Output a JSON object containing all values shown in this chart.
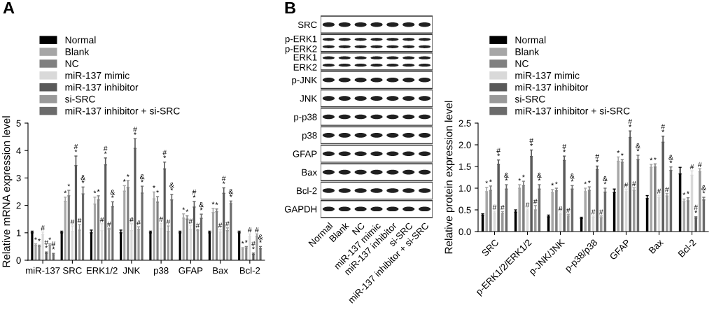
{
  "chart_data": [
    {
      "type": "bar",
      "title": "A",
      "ylabel": "Relative mRNA expression level",
      "legend": "top left",
      "categories": [
        "miR-137",
        "SRC",
        "ERK1/2",
        "JNK",
        "p38",
        "GFAP",
        "Bax",
        "Bcl-2"
      ],
      "ylim": [
        0,
        5
      ],
      "yticks": [
        0,
        1,
        2,
        3,
        4,
        5
      ],
      "series": [
        {
          "name": "Normal",
          "color": "#000000",
          "values": [
            1.0,
            1.0,
            1.0,
            1.0,
            1.0,
            1.0,
            1.0,
            1.0
          ],
          "errors": [
            0.06,
            0.06,
            0.1,
            0.1,
            0.06,
            0.06,
            0.06,
            0.06
          ],
          "value_labels": [
            null,
            null,
            null,
            null,
            null,
            null,
            null,
            null
          ]
        },
        {
          "name": "Blank",
          "color": "#a6a6a6",
          "values": [
            0.55,
            2.15,
            2.05,
            2.52,
            2.24,
            1.54,
            1.74,
            0.41
          ],
          "errors": [
            0.05,
            0.15,
            0.25,
            0.2,
            0.25,
            0.15,
            0.15,
            0.05
          ],
          "value_labels": [
            "*",
            "*",
            "*",
            "*",
            "*",
            "*",
            "*",
            "*"
          ]
        },
        {
          "name": "NC",
          "color": "#808080",
          "values": [
            0.5,
            2.35,
            2.2,
            2.65,
            2.12,
            1.5,
            1.77,
            0.45
          ],
          "errors": [
            0.05,
            0.2,
            0.15,
            0.25,
            0.2,
            0.12,
            0.1,
            0.05
          ],
          "value_labels": [
            "*",
            "*",
            "*",
            "*",
            "*",
            "*",
            "*",
            "*"
          ]
        },
        {
          "name": "miR-137 mimic",
          "color": "#d9d9d9",
          "values": [
            0.93,
            1.05,
            1.08,
            1.08,
            1.15,
            1.13,
            1.03,
            0.86
          ],
          "errors": [
            0.1,
            0.2,
            0.25,
            0.25,
            0.2,
            0.15,
            0.1,
            0.1
          ],
          "value_labels": [
            "#",
            "#",
            "#",
            "#",
            "#",
            "#",
            "#",
            "#"
          ]
        },
        {
          "name": "miR-137 inhibitor",
          "color": "#595959",
          "values": [
            0.25,
            3.45,
            3.48,
            4.08,
            3.33,
            1.94,
            2.44,
            0.21
          ],
          "errors": [
            0.05,
            0.35,
            0.25,
            0.35,
            0.25,
            0.2,
            0.2,
            0.05
          ],
          "value_labels": [
            "#\n*",
            "#\n*",
            "#\n*",
            "#\n*",
            "#\n*",
            "#\n*",
            "#\n*",
            "#\n*"
          ]
        },
        {
          "name": "si-SRC",
          "color": "#999999",
          "values": [
            0.55,
            1.1,
            1.12,
            1.12,
            1.05,
            1.08,
            1.08,
            0.88
          ],
          "errors": [
            0.05,
            0.2,
            0.05,
            0.1,
            0.2,
            0.05,
            0.1,
            0.08
          ],
          "value_labels": [
            "*",
            "#",
            "#",
            "#",
            "#",
            "#",
            "#",
            "#"
          ]
        },
        {
          "name": "miR-137 inhibitor + si-SRC",
          "color": "#6b6b6b",
          "values": [
            0.2,
            2.42,
            1.95,
            2.45,
            2.2,
            1.53,
            2.06,
            0.42
          ],
          "errors": [
            0.05,
            0.25,
            0.18,
            0.25,
            0.2,
            0.15,
            0.1,
            0.08
          ],
          "value_labels": [
            "#\n*",
            "&\n*",
            "&\n*",
            "&\n*",
            "&\n*",
            "&\n*",
            "&\n*",
            "&\n*"
          ]
        }
      ]
    },
    {
      "type": "other",
      "title": "B",
      "categories": [
        "Normal",
        "Blank",
        "NC",
        "miR-137 mimic",
        "miR-137 inhibitor",
        "si-SRC",
        "miR-137 inhibitor + si-SRC"
      ],
      "y_categories": [
        "SRC",
        "p-ERK1\np-ERK2",
        "ERK1\nERK2",
        "p-JNK",
        "JNK",
        "p-p38",
        "p38",
        "GFAP",
        "Bax",
        "Bcl-2",
        "GAPDH"
      ]
    },
    {
      "type": "bar",
      "ylabel": "Relative protein expression level",
      "legend": "top left",
      "categories": [
        "SRC",
        "p-ERK1/2/ERK1/2",
        "p-JNK/JNK",
        "p-p38/p38",
        "GFAP",
        "Bax",
        "Bcl-2"
      ],
      "ylim": [
        0,
        2.5
      ],
      "yticks": [
        {
          "value": 0,
          "label": "0.0"
        },
        0.5,
        {
          "value": 1,
          "label": "1.0"
        },
        1.5,
        {
          "value": 2,
          "label": "2.0"
        },
        2.5
      ],
      "series": [
        {
          "name": "Normal",
          "color": "#000000",
          "values": [
            0.38,
            0.45,
            0.34,
            0.3,
            0.9,
            0.76,
            1.33
          ],
          "errors": [
            0.03,
            0.05,
            0.04,
            0.03,
            0.08,
            0.07,
            0.15
          ],
          "value_labels": [
            null,
            null,
            null,
            null,
            null,
            null,
            null
          ]
        },
        {
          "name": "Blank",
          "color": "#a6a6a6",
          "values": [
            0.92,
            1.0,
            0.9,
            0.92,
            1.62,
            1.48,
            0.69
          ],
          "errors": [
            0.1,
            0.08,
            0.07,
            0.08,
            0.1,
            0.07,
            0.06
          ],
          "value_labels": [
            "*",
            "*",
            "*",
            "*",
            "*",
            "*",
            "*"
          ]
        },
        {
          "name": "NC",
          "color": "#808080",
          "values": [
            0.95,
            1.06,
            0.94,
            0.95,
            1.6,
            1.49,
            0.71
          ],
          "errors": [
            0.1,
            0.1,
            0.06,
            0.08,
            0.06,
            0.07,
            0.07
          ],
          "value_labels": [
            "*",
            "*",
            "*",
            "*",
            "*",
            "*",
            "*"
          ]
        },
        {
          "name": "miR-137 mimic",
          "color": "#d9d9d9",
          "values": [
            0.43,
            0.48,
            0.4,
            0.33,
            0.92,
            0.79,
            1.3
          ],
          "errors": [
            0.04,
            0.04,
            0.03,
            0.03,
            0.06,
            0.05,
            0.1
          ],
          "value_labels": [
            "#",
            "#",
            "#",
            "#",
            "#",
            "#",
            "#"
          ]
        },
        {
          "name": "miR-137 inhibitor",
          "color": "#595959",
          "values": [
            1.55,
            1.73,
            1.64,
            1.43,
            2.17,
            2.06,
            0.31
          ],
          "errors": [
            0.1,
            0.15,
            0.1,
            0.08,
            0.15,
            0.14,
            0.03
          ],
          "value_labels": [
            "#\n*",
            "#\n*",
            "#\n*",
            "#\n*",
            "#\n*",
            "#\n*",
            "#\n*"
          ]
        },
        {
          "name": "si-SRC",
          "color": "#999999",
          "values": [
            0.42,
            0.5,
            0.36,
            0.32,
            0.95,
            0.82,
            1.38
          ],
          "errors": [
            0.04,
            0.1,
            0.04,
            0.04,
            0.06,
            0.06,
            0.07
          ],
          "value_labels": [
            "#",
            "#",
            "#",
            "#",
            "#",
            "#",
            "#"
          ]
        },
        {
          "name": "miR-137 inhibitor + si-SRC",
          "color": "#6b6b6b",
          "values": [
            0.98,
            0.98,
            0.98,
            0.91,
            1.66,
            1.41,
            0.73
          ],
          "errors": [
            0.1,
            0.1,
            0.08,
            0.09,
            0.1,
            0.08,
            0.06
          ],
          "value_labels": [
            "&\n*",
            "&\n*",
            "&\n*",
            "&\n*",
            "&\n*",
            "&\n*",
            "&\n*"
          ]
        }
      ]
    }
  ]
}
